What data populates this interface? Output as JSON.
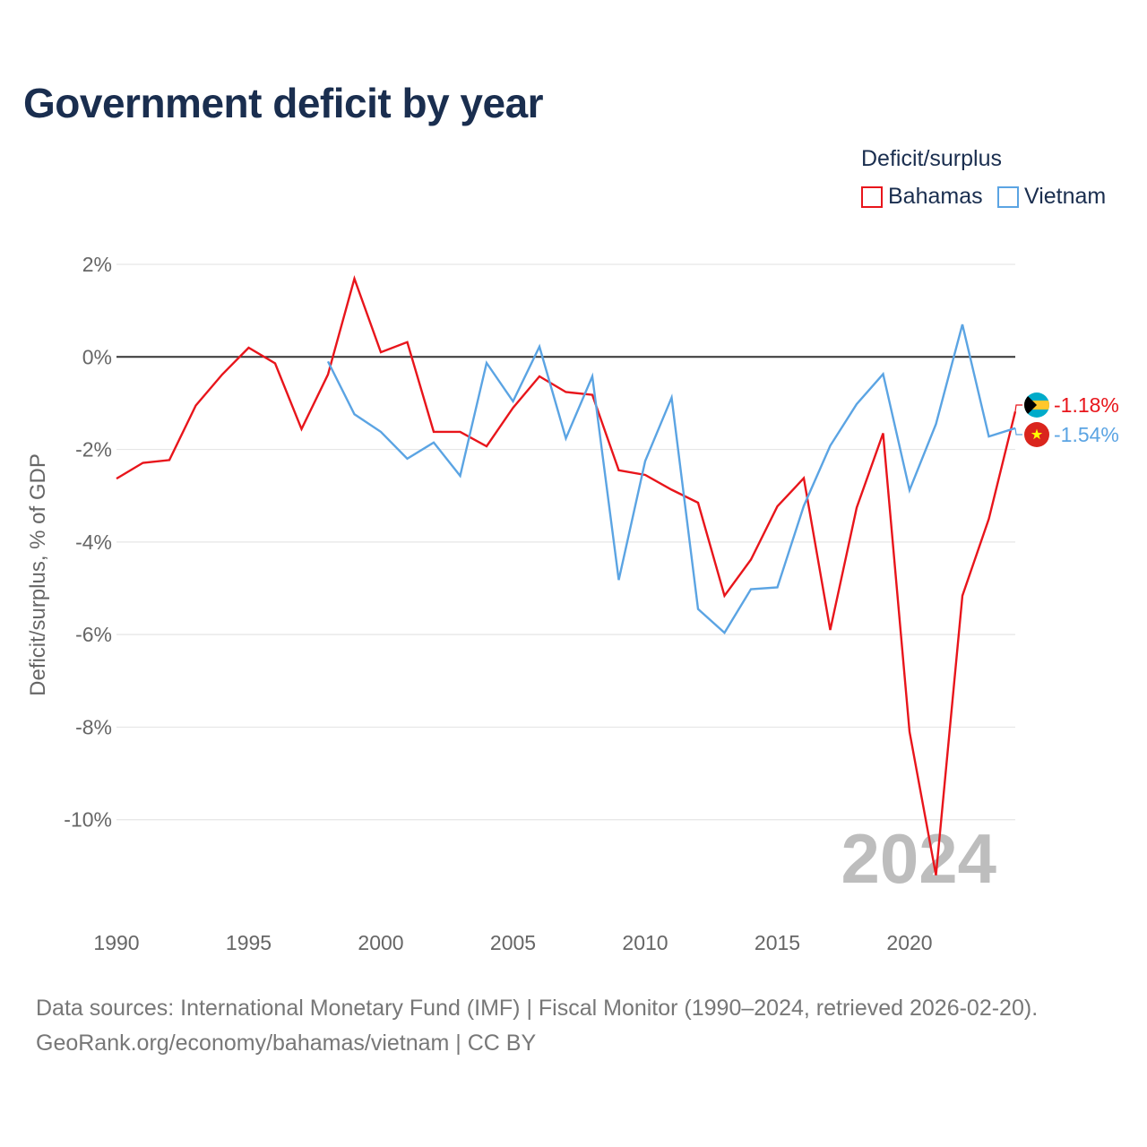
{
  "title": "Government deficit by year",
  "legend": {
    "title": "Deficit/surplus",
    "items": [
      {
        "label": "Bahamas",
        "color": "#e8151b"
      },
      {
        "label": "Vietnam",
        "color": "#5ba4e3"
      }
    ]
  },
  "footer": {
    "line1": "Data sources: International Monetary Fund (IMF) | Fiscal Monitor (1990–2024, retrieved 2026-02-20).",
    "line2": "GeoRank.org/economy/bahamas/vietnam | CC BY"
  },
  "chart_data": {
    "type": "line",
    "title": "Government deficit by year",
    "xlabel": "",
    "ylabel": "Deficit/surplus, % of GDP",
    "xlim": [
      1990,
      2024
    ],
    "ylim": [
      -12,
      2
    ],
    "x_ticks": [
      1990,
      1995,
      2000,
      2005,
      2010,
      2015,
      2020
    ],
    "y_ticks": [
      {
        "value": 2,
        "label": "2%"
      },
      {
        "value": 0,
        "label": "0%"
      },
      {
        "value": -2,
        "label": "-2%"
      },
      {
        "value": -4,
        "label": "-4%"
      },
      {
        "value": -6,
        "label": "-6%"
      },
      {
        "value": -8,
        "label": "-8%"
      },
      {
        "value": -10,
        "label": "-10%"
      }
    ],
    "watermark_year": "2024",
    "series": [
      {
        "name": "Bahamas",
        "color": "#e8151b",
        "end_label": "-1.18%",
        "x": [
          1990,
          1991,
          1992,
          1993,
          1994,
          1995,
          1996,
          1997,
          1998,
          1999,
          2000,
          2001,
          2002,
          2003,
          2004,
          2005,
          2006,
          2007,
          2008,
          2009,
          2010,
          2011,
          2012,
          2013,
          2014,
          2015,
          2016,
          2017,
          2018,
          2019,
          2020,
          2021,
          2022,
          2023,
          2024
        ],
        "values": [
          -2.63,
          -2.29,
          -2.23,
          -1.05,
          -0.38,
          0.2,
          -0.14,
          -1.56,
          -0.38,
          1.69,
          0.1,
          0.32,
          -1.62,
          -1.62,
          -1.93,
          -1.1,
          -0.42,
          -0.76,
          -0.82,
          -2.45,
          -2.55,
          -2.87,
          -3.15,
          -5.16,
          -4.38,
          -3.23,
          -2.62,
          -5.9,
          -3.26,
          -1.65,
          -8.1,
          -11.2,
          -5.16,
          -3.5,
          -1.18
        ]
      },
      {
        "name": "Vietnam",
        "color": "#5ba4e3",
        "end_label": "-1.54%",
        "x": [
          1998,
          1999,
          2000,
          2001,
          2002,
          2003,
          2004,
          2005,
          2006,
          2007,
          2008,
          2009,
          2010,
          2011,
          2012,
          2013,
          2014,
          2015,
          2016,
          2017,
          2018,
          2019,
          2020,
          2021,
          2022,
          2023,
          2024
        ],
        "values": [
          -0.1,
          -1.24,
          -1.62,
          -2.2,
          -1.85,
          -2.57,
          -0.13,
          -0.96,
          0.22,
          -1.76,
          -0.42,
          -4.82,
          -2.25,
          -0.88,
          -5.45,
          -5.96,
          -5.02,
          -4.98,
          -3.22,
          -1.92,
          -1.02,
          -0.37,
          -2.88,
          -1.45,
          0.7,
          -1.72,
          -1.54
        ]
      }
    ]
  }
}
